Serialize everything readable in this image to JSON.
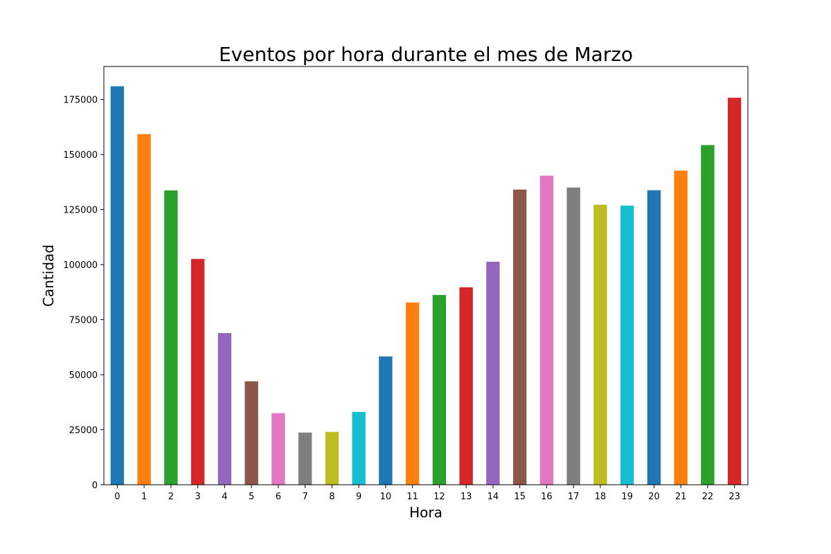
{
  "chart_data": {
    "type": "bar",
    "title": "Eventos por hora durante el mes de Marzo",
    "xlabel": "Hora",
    "ylabel": "Cantidad",
    "categories": [
      "0",
      "1",
      "2",
      "3",
      "4",
      "5",
      "6",
      "7",
      "8",
      "9",
      "10",
      "11",
      "12",
      "13",
      "14",
      "15",
      "16",
      "17",
      "18",
      "19",
      "20",
      "21",
      "22",
      "23"
    ],
    "values": [
      181000,
      159300,
      133700,
      102600,
      68900,
      47000,
      32500,
      23700,
      24000,
      33100,
      58300,
      82800,
      86200,
      89700,
      101300,
      134100,
      140400,
      135000,
      127200,
      126800,
      133800,
      142700,
      154300,
      175800
    ],
    "ylim": [
      0,
      190000
    ],
    "yticks": [
      0,
      25000,
      50000,
      75000,
      100000,
      125000,
      150000,
      175000
    ],
    "grid": false,
    "legend": "none",
    "colors": [
      "#1f77b4",
      "#ff7f0e",
      "#2ca02c",
      "#d62728",
      "#9467bd",
      "#8c564b",
      "#e377c2",
      "#7f7f7f",
      "#bcbd22",
      "#17becf"
    ]
  }
}
